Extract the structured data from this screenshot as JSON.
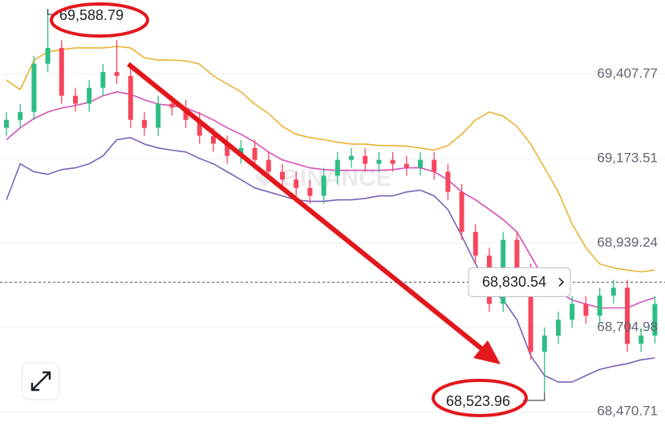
{
  "chart_data": {
    "type": "candlestick",
    "watermark": "BINANCE",
    "ylim": [
      68431,
      69614
    ],
    "yticks": [
      {
        "value": 69407.77,
        "label": "69,407.77"
      },
      {
        "value": 69173.51,
        "label": "69,173.51"
      },
      {
        "value": 68939.24,
        "label": "68,939.24"
      },
      {
        "value": 68704.98,
        "label": "68,704.98"
      },
      {
        "value": 68470.71,
        "label": "68,470.71"
      }
    ],
    "grid": true,
    "up_color": "#2ebd85",
    "down_color": "#f6465d",
    "open": [
      69259,
      69281,
      69303,
      69437,
      69481,
      69348,
      69326,
      69370,
      69414,
      69403,
      69281,
      69259,
      69326,
      69315,
      69281,
      69237,
      69215,
      69181,
      69203,
      69170,
      69137,
      69115,
      69092,
      69070,
      69126,
      69170,
      69181,
      69159,
      69170,
      69159,
      69148,
      69170,
      69137,
      69081,
      68970,
      68904,
      68770,
      68948,
      68859,
      68637,
      68682,
      68726,
      68770,
      68737,
      68793,
      68815,
      68659,
      68682
    ],
    "high": [
      69303,
      69325,
      69459,
      69588.79,
      69503,
      69370,
      69392,
      69436,
      69503,
      69425,
      69303,
      69348,
      69348,
      69337,
      69303,
      69259,
      69237,
      69225,
      69225,
      69192,
      69159,
      69137,
      69114,
      69148,
      69192,
      69203,
      69203,
      69192,
      69192,
      69181,
      69192,
      69192,
      69159,
      69103,
      68992,
      68926,
      68970,
      68970,
      68881,
      68704,
      68748,
      68792,
      68792,
      68815,
      68837,
      68837,
      68704,
      68792
    ],
    "low": [
      69237,
      69259,
      69281,
      69415,
      69326,
      69304,
      69304,
      69348,
      69381,
      69259,
      69237,
      69237,
      69293,
      69259,
      69215,
      69193,
      69159,
      69159,
      69148,
      69115,
      69093,
      69070,
      69048,
      69048,
      69104,
      69148,
      69137,
      69137,
      69137,
      69126,
      69126,
      69115,
      69059,
      68948,
      68882,
      68748,
      68748,
      68837,
      68615,
      68523.96,
      68660,
      68704,
      68715,
      68715,
      68771,
      68637,
      68637,
      68660
    ],
    "close": [
      69281,
      69303,
      69437,
      69481,
      69348,
      69326,
      69370,
      69414,
      69403,
      69281,
      69259,
      69326,
      69315,
      69281,
      69237,
      69215,
      69181,
      69203,
      69170,
      69137,
      69115,
      69092,
      69070,
      69126,
      69170,
      69181,
      69159,
      69170,
      69159,
      69148,
      69170,
      69137,
      69081,
      68970,
      68904,
      68770,
      68948,
      68859,
      68637,
      68682,
      68726,
      68770,
      68737,
      68793,
      68815,
      68659,
      68682,
      68770
    ],
    "lines": [
      {
        "color": "#e9b234",
        "values": [
          69392,
          69365,
          69447,
          69470,
          69476,
          69481,
          69481,
          69481,
          69485,
          69481,
          69454,
          69447,
          69447,
          69445,
          69436,
          69403,
          69381,
          69359,
          69325,
          69299,
          69263,
          69241,
          69232,
          69226,
          69219,
          69214,
          69214,
          69210,
          69210,
          69208,
          69203,
          69197,
          69210,
          69241,
          69281,
          69303,
          69292,
          69263,
          69214,
          69148,
          69081,
          68992,
          68926,
          68881,
          68870,
          68864,
          68859,
          68864
        ]
      },
      {
        "color": "#d651b6",
        "values": [
          69226,
          69259,
          69285,
          69303,
          69314,
          69321,
          69330,
          69348,
          69359,
          69352,
          69337,
          69325,
          69321,
          69314,
          69299,
          69281,
          69259,
          69241,
          69219,
          69192,
          69170,
          69159,
          69148,
          69143,
          69141,
          69141,
          69141,
          69141,
          69143,
          69148,
          69148,
          69137,
          69115,
          69081,
          69059,
          69032,
          69004,
          68970,
          68904,
          68837,
          68804,
          68781,
          68770,
          68759,
          68759,
          68759,
          68775,
          68788
        ]
      },
      {
        "color": "#7b62b8",
        "values": [
          69059,
          69159,
          69137,
          69130,
          69143,
          69148,
          69159,
          69181,
          69226,
          69232,
          69214,
          69203,
          69197,
          69192,
          69174,
          69159,
          69137,
          69115,
          69092,
          69081,
          69070,
          69059,
          69055,
          69055,
          69059,
          69059,
          69063,
          69070,
          69070,
          69081,
          69086,
          69070,
          69032,
          68959,
          68881,
          68815,
          68781,
          68726,
          68626,
          68571,
          68553,
          68553,
          68571,
          68588,
          68597,
          68604,
          68615,
          68620
        ]
      }
    ],
    "high_annotation": {
      "value": 69588.79,
      "label": "69,588.79"
    },
    "low_annotation": {
      "value": 68523.96,
      "label": "68,523.96"
    },
    "current_price": {
      "value": 68830.54,
      "label": "68,830.54"
    }
  }
}
